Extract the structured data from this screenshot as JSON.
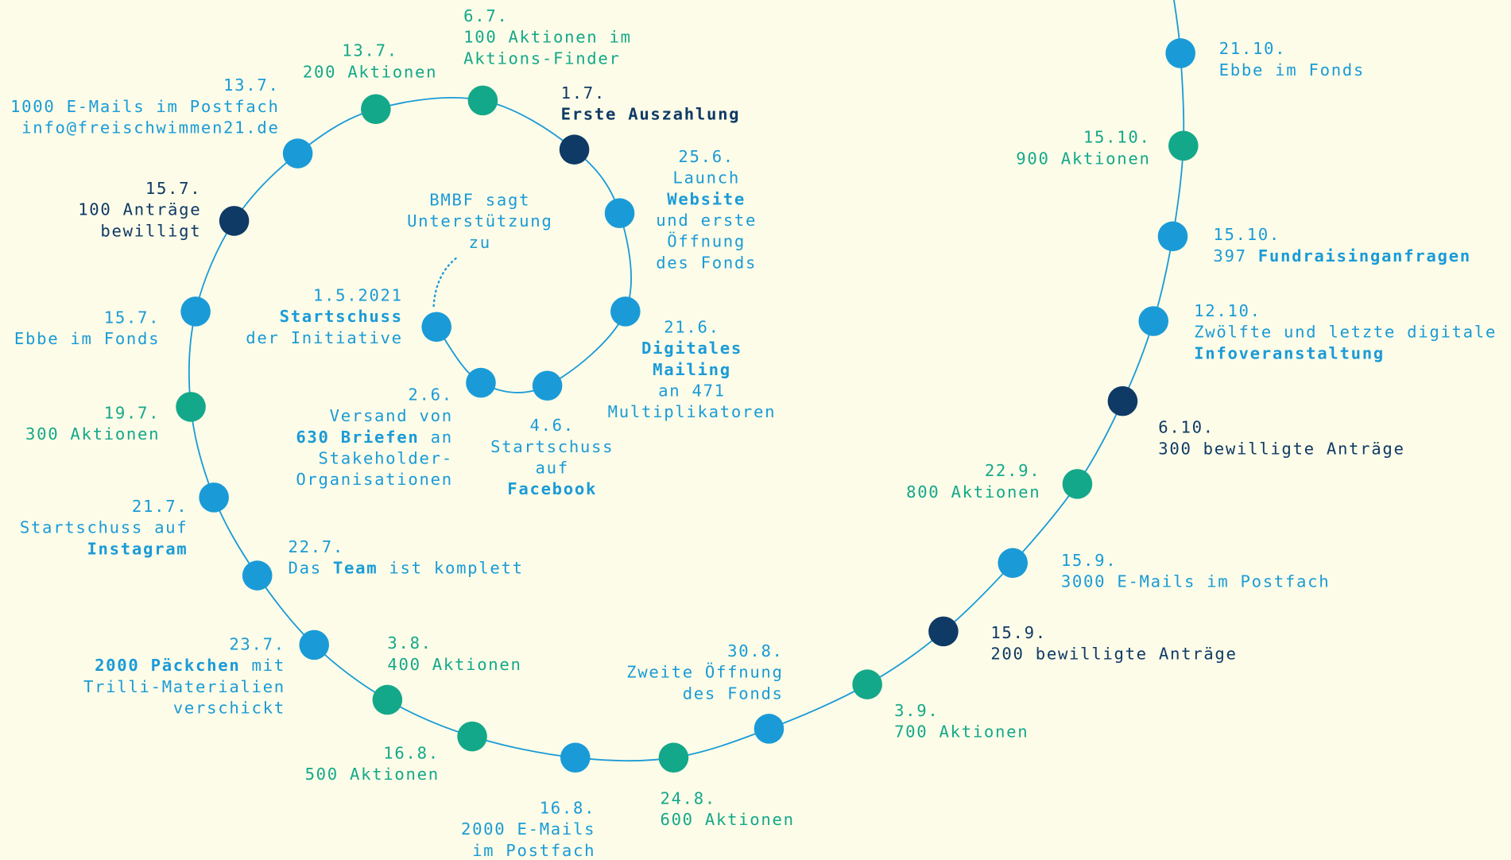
{
  "annotation": [
    "BMBF sagt",
    "Unterstützung",
    "zu"
  ],
  "events": [
    {
      "date": "1.5.2021",
      "color": "blue",
      "lines": [
        [
          {
            "text": "Startschuss",
            "bold": true
          }
        ],
        [
          "der Initiative"
        ]
      ]
    },
    {
      "date": "2.6.",
      "color": "blue",
      "lines": [
        [
          "Versand von"
        ],
        [
          {
            "text": "630 Briefen",
            "bold": true
          },
          " an"
        ],
        [
          "Stakeholder-"
        ],
        [
          "Organisationen"
        ]
      ]
    },
    {
      "date": "4.6.",
      "color": "blue",
      "lines": [
        [
          "Startschuss"
        ],
        [
          "auf"
        ],
        [
          {
            "text": "Facebook",
            "bold": true
          }
        ]
      ]
    },
    {
      "date": "21.6.",
      "color": "blue",
      "lines": [
        [
          {
            "text": "Digitales",
            "bold": true
          }
        ],
        [
          {
            "text": "Mailing",
            "bold": true
          }
        ],
        [
          "an 471"
        ],
        [
          "Multiplikatoren"
        ]
      ]
    },
    {
      "date": "25.6.",
      "color": "blue",
      "lines": [
        [
          "Launch"
        ],
        [
          {
            "text": "Website",
            "bold": true
          }
        ],
        [
          "und erste"
        ],
        [
          "Öffnung"
        ],
        [
          "des Fonds"
        ]
      ]
    },
    {
      "date": "1.7.",
      "color": "navy",
      "lines": [
        [
          {
            "text": "Erste Auszahlung",
            "bold": true
          }
        ]
      ]
    },
    {
      "date": "6.7.",
      "color": "green",
      "lines": [
        [
          "100 Aktionen im"
        ],
        [
          "Aktions-Finder"
        ]
      ]
    },
    {
      "date": "13.7.",
      "color": "green",
      "lines": [
        [
          "200 Aktionen"
        ]
      ]
    },
    {
      "date": "13.7.",
      "color": "blue",
      "lines": [
        [
          "1000 E-Mails im Postfach"
        ],
        [
          "info@freischwimmen21.de"
        ]
      ]
    },
    {
      "date": "15.7.",
      "color": "navy",
      "lines": [
        [
          "100 Anträge"
        ],
        [
          "bewilligt"
        ]
      ]
    },
    {
      "date": "15.7.",
      "color": "blue",
      "lines": [
        [
          "Ebbe im Fonds"
        ]
      ]
    },
    {
      "date": "19.7.",
      "color": "green",
      "lines": [
        [
          "300 Aktionen"
        ]
      ]
    },
    {
      "date": "21.7.",
      "color": "blue",
      "lines": [
        [
          "Startschuss auf"
        ],
        [
          {
            "text": "Instagram",
            "bold": true
          }
        ]
      ]
    },
    {
      "date": "22.7.",
      "color": "blue",
      "lines": [
        [
          "Das ",
          {
            "text": "Team",
            "bold": true
          },
          " ist komplett"
        ]
      ]
    },
    {
      "date": "23.7.",
      "color": "blue",
      "lines": [
        [
          {
            "text": "2000 Päckchen",
            "bold": true
          },
          " mit"
        ],
        [
          "Trilli-Materialien"
        ],
        [
          "verschickt"
        ]
      ]
    },
    {
      "date": "3.8.",
      "color": "green",
      "lines": [
        [
          "400 Aktionen"
        ]
      ]
    },
    {
      "date": "16.8.",
      "color": "green",
      "lines": [
        [
          "500 Aktionen"
        ]
      ]
    },
    {
      "date": "16.8.",
      "color": "blue",
      "lines": [
        [
          "2000 E-Mails"
        ],
        [
          "im Postfach"
        ]
      ]
    },
    {
      "date": "24.8.",
      "color": "green",
      "lines": [
        [
          "600 Aktionen"
        ]
      ]
    },
    {
      "date": "30.8.",
      "color": "blue",
      "lines": [
        [
          "Zweite Öffnung"
        ],
        [
          "des Fonds"
        ]
      ]
    },
    {
      "date": "3.9.",
      "color": "green",
      "lines": [
        [
          "700 Aktionen"
        ]
      ]
    },
    {
      "date": "15.9.",
      "color": "navy",
      "lines": [
        [
          "200 bewilligte Anträge"
        ]
      ]
    },
    {
      "date": "15.9.",
      "color": "blue",
      "lines": [
        [
          "3000 E-Mails im Postfach"
        ]
      ]
    },
    {
      "date": "22.9.",
      "color": "green",
      "lines": [
        [
          "800 Aktionen"
        ]
      ]
    },
    {
      "date": "6.10.",
      "color": "navy",
      "lines": [
        [
          "300 bewilligte Anträge"
        ]
      ]
    },
    {
      "date": "12.10.",
      "color": "blue",
      "lines": [
        [
          "Zwölfte und letzte digitale"
        ],
        [
          {
            "text": "Infoveranstaltung",
            "bold": true
          }
        ]
      ]
    },
    {
      "date": "15.10.",
      "color": "blue",
      "lines": [
        [
          "397 ",
          {
            "text": "Fundraisinganfragen",
            "bold": true
          }
        ]
      ]
    },
    {
      "date": "15.10.",
      "color": "green",
      "lines": [
        [
          "900 Aktionen"
        ]
      ]
    },
    {
      "date": "21.10.",
      "color": "blue",
      "lines": [
        [
          "Ebbe im Fonds"
        ]
      ]
    }
  ]
}
